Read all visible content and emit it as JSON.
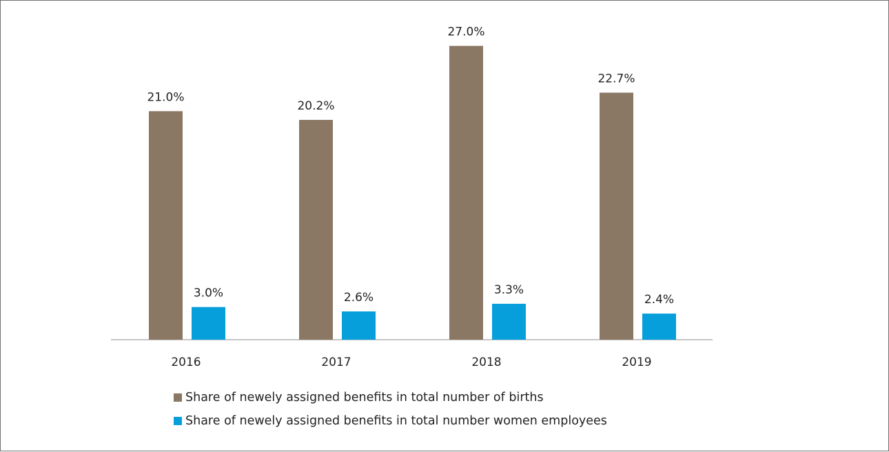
{
  "chart_data": {
    "type": "bar",
    "categories": [
      "2016",
      "2017",
      "2018",
      "2019"
    ],
    "series": [
      {
        "name": "Share of newely assigned benefits in total number of births",
        "values": [
          21.0,
          20.2,
          27.0,
          22.7
        ],
        "labels": [
          "21.0%",
          "20.2%",
          "27.0%",
          "22.7%"
        ],
        "color": "#8a7864"
      },
      {
        "name": "Share of newely assigned benefits in total number women employees",
        "values": [
          3.0,
          2.6,
          3.3,
          2.4
        ],
        "labels": [
          "3.0%",
          "2.6%",
          "3.3%",
          "2.4%"
        ],
        "color": "#079fdb"
      }
    ],
    "ylim": [
      0,
      29
    ],
    "grid": false,
    "legend_position": "bottom"
  }
}
